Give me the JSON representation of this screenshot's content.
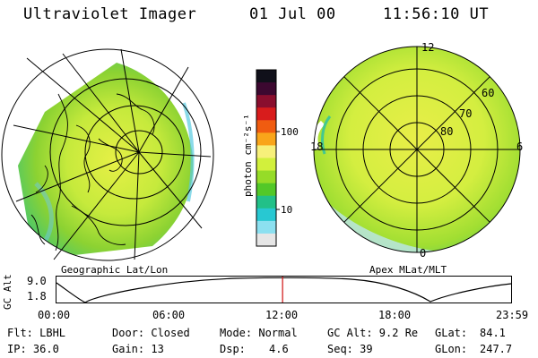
{
  "header": {
    "instrument": "Ultraviolet Imager",
    "date": "01 Jul 00",
    "time": "11:56:10 UT"
  },
  "geo_panel": {
    "label": "Geographic Lat/Lon"
  },
  "polar_panel": {
    "label": "Apex MLat/MLT",
    "lat_labels": [
      "60",
      "70",
      "80"
    ],
    "mlt_labels": {
      "top": "12",
      "left": "18",
      "right": "6",
      "bottom": "0"
    }
  },
  "colorbar": {
    "unit_label": "photon cm⁻²s⁻¹",
    "ticks": [
      "100",
      "10"
    ],
    "colors": [
      "#10101a",
      "#3c0830",
      "#8a0e2e",
      "#d81c1c",
      "#f05c10",
      "#f9a51a",
      "#f7f07a",
      "#d2f03c",
      "#96dc28",
      "#52c828",
      "#22c088",
      "#28c8d2",
      "#8ce0f0",
      "#e6e6e6"
    ]
  },
  "altitude_plot": {
    "ylabel": "GC Alt",
    "ymax": "9.0",
    "ymin": "1.8",
    "x_ticks": [
      "00:00",
      "06:00",
      "12:00",
      "18:00",
      "23:59"
    ],
    "current_time_fraction": 0.4973,
    "marker_color": "#d01010"
  },
  "info": {
    "flt": "Flt: LBHL",
    "ip": "IP: 36.0",
    "door": "Door: Closed",
    "gain": "Gain: 13",
    "mode": "Mode: Normal",
    "dsp_label": "Dsp:",
    "dsp_value": "4.6",
    "gc_alt": "GC Alt: 9.2 Re",
    "seq": "Seq: 39",
    "glat_label": "GLat:",
    "glat_value": "84.1",
    "glon_label": "GLon:",
    "glon_value": "247.7"
  }
}
